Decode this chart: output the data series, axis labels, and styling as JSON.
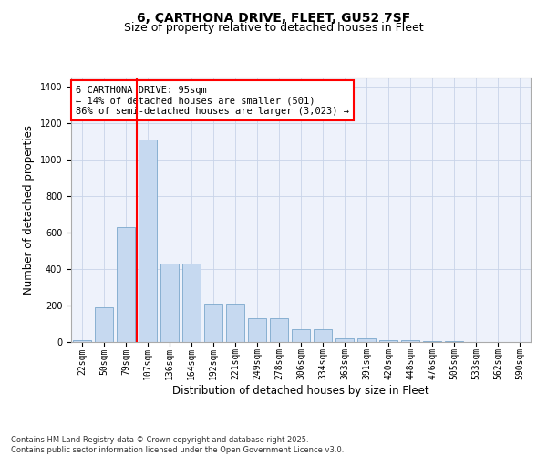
{
  "title_line1": "6, CARTHONA DRIVE, FLEET, GU52 7SF",
  "title_line2": "Size of property relative to detached houses in Fleet",
  "xlabel": "Distribution of detached houses by size in Fleet",
  "ylabel": "Number of detached properties",
  "categories": [
    "22sqm",
    "50sqm",
    "79sqm",
    "107sqm",
    "136sqm",
    "164sqm",
    "192sqm",
    "221sqm",
    "249sqm",
    "278sqm",
    "306sqm",
    "334sqm",
    "363sqm",
    "391sqm",
    "420sqm",
    "448sqm",
    "476sqm",
    "505sqm",
    "533sqm",
    "562sqm",
    "590sqm"
  ],
  "values": [
    10,
    190,
    630,
    1110,
    430,
    430,
    210,
    210,
    130,
    130,
    70,
    70,
    20,
    20,
    10,
    10,
    5,
    3,
    2,
    1,
    1
  ],
  "bar_color": "#c6d9f0",
  "bar_edge_color": "#7ba7cc",
  "grid_color": "#c8d4e8",
  "background_color": "#eef2fb",
  "vline_color": "red",
  "vline_x_index": 2.5,
  "annotation_text": "6 CARTHONA DRIVE: 95sqm\n← 14% of detached houses are smaller (501)\n86% of semi-detached houses are larger (3,023) →",
  "annotation_box_color": "white",
  "annotation_box_edge": "red",
  "ylim": [
    0,
    1450
  ],
  "yticks": [
    0,
    200,
    400,
    600,
    800,
    1000,
    1200,
    1400
  ],
  "footer_text": "Contains HM Land Registry data © Crown copyright and database right 2025.\nContains public sector information licensed under the Open Government Licence v3.0.",
  "title_fontsize": 10,
  "subtitle_fontsize": 9,
  "tick_fontsize": 7,
  "label_fontsize": 8.5,
  "annotation_fontsize": 7.5
}
